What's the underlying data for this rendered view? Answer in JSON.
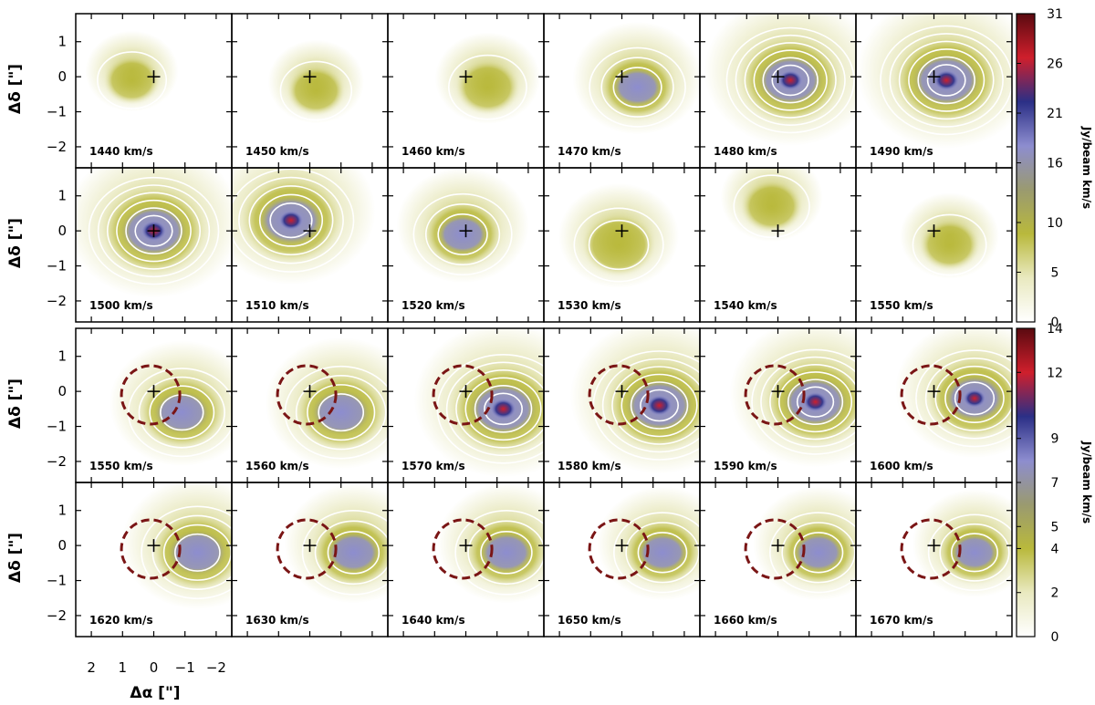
{
  "chart_data": {
    "type": "heatmap",
    "title": "",
    "xlabel": "Δα [\"]",
    "ylabel": "Δδ [\"]",
    "xlim": [
      2.5,
      -2.5
    ],
    "ylim": [
      -2.6,
      1.8
    ],
    "x_ticks": [
      "2",
      "1",
      "0",
      "−1",
      "−2"
    ],
    "y_ticks": [
      "1",
      "0",
      "−1",
      "−2"
    ],
    "panel_ytick_values": [
      1,
      0,
      -1,
      -2
    ],
    "panel_xtick_values": [
      2,
      1,
      0,
      -1,
      -2
    ],
    "marker": "+",
    "marker_position": [
      0,
      0
    ],
    "contours": "white",
    "colormaps": [
      "white",
      "olive-yellow",
      "lavender-blue",
      "dark-blue",
      "red",
      "dark-red"
    ],
    "panel_groups": [
      {
        "name": "upper",
        "colorbar": {
          "label": "Jy/beam km/s",
          "ticks": [
            "0",
            "5",
            "10",
            "16",
            "21",
            "26",
            "31"
          ],
          "tick_values": [
            0,
            5,
            10,
            16,
            21,
            26,
            31
          ],
          "range": [
            0,
            31
          ]
        },
        "panels": [
          {
            "velocity": "1440 km/s",
            "peak": [
              0.7,
              -0.1
            ],
            "peak_value": 3,
            "dashed_circle": false
          },
          {
            "velocity": "1450 km/s",
            "peak": [
              -0.2,
              -0.4
            ],
            "peak_value": 4,
            "dashed_circle": false
          },
          {
            "velocity": "1460 km/s",
            "peak": [
              -0.7,
              -0.3
            ],
            "peak_value": 7,
            "dashed_circle": false
          },
          {
            "velocity": "1470 km/s",
            "peak": [
              -0.5,
              -0.3
            ],
            "peak_value": 15,
            "dashed_circle": false
          },
          {
            "velocity": "1480 km/s",
            "peak": [
              -0.4,
              -0.1
            ],
            "peak_value": 29,
            "dashed_circle": false
          },
          {
            "velocity": "1490 km/s",
            "peak": [
              -0.4,
              -0.1
            ],
            "peak_value": 31,
            "dashed_circle": false
          },
          {
            "velocity": "1500 km/s",
            "peak": [
              0.0,
              0.0
            ],
            "peak_value": 30,
            "dashed_circle": false
          },
          {
            "velocity": "1510 km/s",
            "peak": [
              0.6,
              0.3
            ],
            "peak_value": 28,
            "dashed_circle": false
          },
          {
            "velocity": "1520 km/s",
            "peak": [
              0.1,
              -0.1
            ],
            "peak_value": 16,
            "dashed_circle": false
          },
          {
            "velocity": "1530 km/s",
            "peak": [
              0.1,
              -0.4
            ],
            "peak_value": 12,
            "dashed_circle": false
          },
          {
            "velocity": "1540 km/s",
            "peak": [
              0.2,
              0.7
            ],
            "peak_value": 6,
            "dashed_circle": false
          },
          {
            "velocity": "1550 km/s",
            "peak": [
              -0.5,
              -0.4
            ],
            "peak_value": 5,
            "dashed_circle": false
          }
        ]
      },
      {
        "name": "lower",
        "colorbar": {
          "label": "Jy/beam km/s",
          "ticks": [
            "0",
            "2",
            "4",
            "5",
            "7",
            "9",
            "12",
            "14"
          ],
          "tick_values": [
            0,
            2,
            4,
            5,
            7,
            9,
            12,
            14
          ],
          "range": [
            0,
            14
          ]
        },
        "panels": [
          {
            "velocity": "1550 km/s",
            "peak": [
              -0.9,
              -0.6
            ],
            "peak_value": 9,
            "dashed_circle": true
          },
          {
            "velocity": "1560 km/s",
            "peak": [
              -1.0,
              -0.6
            ],
            "peak_value": 10,
            "dashed_circle": true
          },
          {
            "velocity": "1570 km/s",
            "peak": [
              -1.2,
              -0.5
            ],
            "peak_value": 14,
            "dashed_circle": true
          },
          {
            "velocity": "1580 km/s",
            "peak": [
              -1.2,
              -0.4
            ],
            "peak_value": 14,
            "dashed_circle": true
          },
          {
            "velocity": "1590 km/s",
            "peak": [
              -1.2,
              -0.3
            ],
            "peak_value": 13,
            "dashed_circle": true
          },
          {
            "velocity": "1600 km/s",
            "peak": [
              -1.3,
              -0.2
            ],
            "peak_value": 11,
            "dashed_circle": true
          },
          {
            "velocity": "1620 km/s",
            "peak": [
              -1.4,
              -0.2
            ],
            "peak_value": 10,
            "dashed_circle": true
          },
          {
            "velocity": "1630 km/s",
            "peak": [
              -1.4,
              -0.2
            ],
            "peak_value": 8,
            "dashed_circle": true
          },
          {
            "velocity": "1640 km/s",
            "peak": [
              -1.3,
              -0.2
            ],
            "peak_value": 8,
            "dashed_circle": true
          },
          {
            "velocity": "1650 km/s",
            "peak": [
              -1.3,
              -0.2
            ],
            "peak_value": 7,
            "dashed_circle": true
          },
          {
            "velocity": "1660 km/s",
            "peak": [
              -1.3,
              -0.2
            ],
            "peak_value": 7,
            "dashed_circle": true
          },
          {
            "velocity": "1670 km/s",
            "peak": [
              -1.3,
              -0.2
            ],
            "peak_value": 6,
            "dashed_circle": true
          }
        ]
      }
    ]
  },
  "colors": {
    "background": "#ffffff",
    "low": "#e9e9c0",
    "mid": "#b9b93c",
    "high": "#8d8dcf",
    "peak": "#cf1f2c",
    "contour": "#ffffff",
    "circle": "#7a1515"
  }
}
